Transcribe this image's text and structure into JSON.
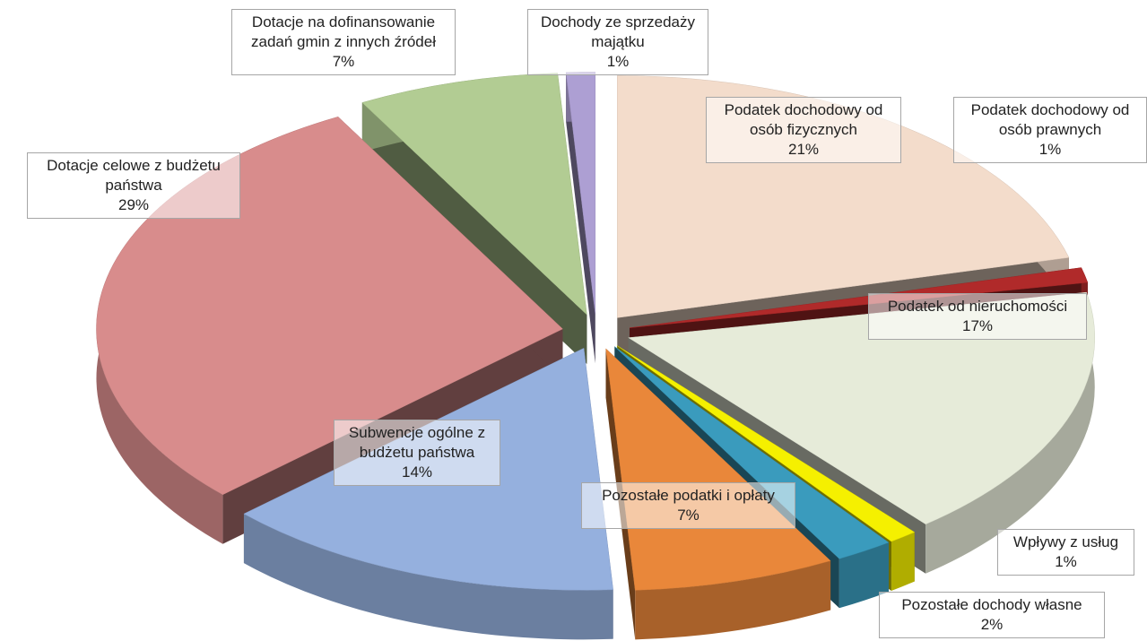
{
  "chart_data": {
    "type": "pie3d",
    "categories": [
      "Podatek dochodowy od osób fizycznych",
      "Podatek dochodowy od osób prawnych",
      "Podatek od nieruchomości",
      "Wpływy z usług",
      "Pozostałe  dochody własne",
      "Pozostałe podatki i opłaty",
      "Subwencje ogólne z budżetu państwa",
      "Dotacje celowe z budżetu państwa",
      "Dotacje na dofinansowanie zadań gmin z innych źródeł",
      "Dochody ze sprzedaży majątku"
    ],
    "values": [
      21,
      1,
      17,
      1,
      2,
      7,
      14,
      29,
      7,
      1
    ],
    "value_labels": [
      "21%",
      "1%",
      "17%",
      "1%",
      "2%",
      "7%",
      "14%",
      "29%",
      "7%",
      "1%"
    ],
    "colors": [
      "#f3dccb",
      "#b02a2a",
      "#e6ebd9",
      "#f5f000",
      "#3a9bbd",
      "#e9873a",
      "#95b0de",
      "#d88c8c",
      "#b2cc93",
      "#ad9fd3"
    ]
  }
}
